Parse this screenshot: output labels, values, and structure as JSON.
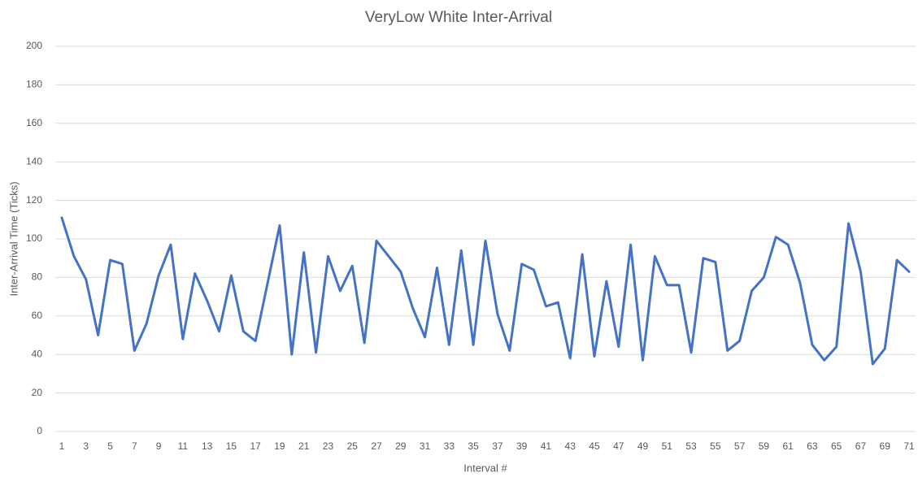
{
  "chart_data": {
    "type": "line",
    "title": "VeryLow White Inter-Arrival",
    "x_label": "Interval #",
    "y_label": "Inter-Arrival Time (Ticks)",
    "categories": [
      1,
      null,
      3,
      null,
      5,
      null,
      7,
      null,
      9,
      null,
      11,
      null,
      13,
      null,
      15,
      null,
      17,
      null,
      19,
      null,
      21,
      null,
      23,
      null,
      25,
      null,
      27,
      null,
      29,
      null,
      31,
      null,
      33,
      null,
      35,
      null,
      37,
      null,
      39,
      null,
      41,
      null,
      43,
      null,
      45,
      null,
      47,
      null,
      49,
      null,
      51,
      null,
      53,
      null,
      55,
      null,
      57,
      null,
      59,
      null,
      61,
      null,
      63,
      null,
      65,
      null,
      67,
      null,
      69,
      null,
      71
    ],
    "series": [
      {
        "name": "Inter-Arrival Time",
        "color": "#4472c4",
        "values": [
          111,
          91,
          79,
          50,
          89,
          87,
          42,
          56,
          81,
          97,
          48,
          82,
          68,
          52,
          81,
          52,
          47,
          77,
          107,
          40,
          93,
          41,
          91,
          73,
          86,
          46,
          99,
          91,
          83,
          64,
          49,
          85,
          45,
          94,
          45,
          99,
          61,
          42,
          87,
          84,
          65,
          67,
          38,
          92,
          39,
          78,
          44,
          97,
          37,
          91,
          76,
          76,
          41,
          90,
          88,
          42,
          47,
          73,
          80,
          101,
          97,
          77,
          45,
          37,
          44,
          108,
          83,
          35,
          43,
          89,
          83
        ]
      }
    ],
    "ylim": [
      0,
      200
    ],
    "yticks": [
      0,
      20,
      40,
      60,
      80,
      100,
      120,
      140,
      160,
      180,
      200
    ],
    "grid": true
  }
}
